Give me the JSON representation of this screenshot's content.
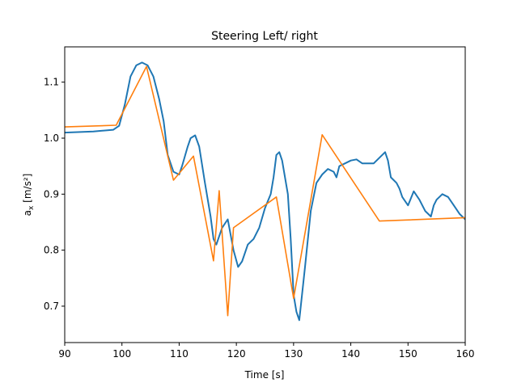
{
  "chart_data": {
    "type": "line",
    "title": "Steering Left/ right",
    "xlabel": "Time [s]",
    "ylabel_main": "a",
    "ylabel_sub": "x",
    "ylabel_unit": " [m/s²]",
    "xlim": [
      90,
      160
    ],
    "ylim": [
      0.635,
      1.163
    ],
    "xticks": [
      90,
      100,
      110,
      120,
      130,
      140,
      150,
      160
    ],
    "yticks": [
      0.7,
      0.8,
      0.9,
      1.0,
      1.1
    ],
    "ytick_labels": [
      "0.7",
      "0.8",
      "0.9",
      "1.0",
      "1.1"
    ],
    "grid": false,
    "series": [
      {
        "color": "#1f77b4",
        "x": [
          90,
          95,
          98.5,
          99.5,
          100.5,
          101.5,
          102.5,
          103.5,
          104.5,
          105.5,
          106.5,
          107.3,
          108,
          109,
          110,
          110.5,
          111.5,
          112,
          112.8,
          113.5,
          114.5,
          115.5,
          116,
          116.5,
          117.5,
          118.5,
          119.5,
          120.3,
          121,
          122,
          123,
          124,
          125,
          126,
          126.5,
          127,
          127.5,
          128,
          129,
          129.5,
          130,
          130.5,
          131,
          132,
          133,
          134,
          135,
          136,
          137,
          137.5,
          138,
          139,
          140,
          141,
          142,
          143,
          144,
          145,
          146,
          146.5,
          147,
          148,
          148.5,
          149,
          150,
          151,
          152,
          153,
          154,
          154.5,
          155,
          156,
          157,
          158,
          159,
          160
        ],
        "y": [
          1.01,
          1.012,
          1.015,
          1.022,
          1.06,
          1.11,
          1.13,
          1.135,
          1.13,
          1.11,
          1.07,
          1.03,
          0.97,
          0.94,
          0.935,
          0.95,
          0.985,
          1.0,
          1.005,
          0.985,
          0.92,
          0.86,
          0.82,
          0.81,
          0.84,
          0.855,
          0.8,
          0.77,
          0.78,
          0.81,
          0.82,
          0.84,
          0.875,
          0.9,
          0.93,
          0.97,
          0.975,
          0.96,
          0.9,
          0.82,
          0.72,
          0.69,
          0.675,
          0.77,
          0.87,
          0.92,
          0.935,
          0.945,
          0.94,
          0.93,
          0.95,
          0.955,
          0.96,
          0.962,
          0.955,
          0.955,
          0.955,
          0.965,
          0.975,
          0.96,
          0.93,
          0.92,
          0.91,
          0.895,
          0.88,
          0.905,
          0.89,
          0.87,
          0.86,
          0.88,
          0.89,
          0.9,
          0.895,
          0.88,
          0.865,
          0.855
        ]
      },
      {
        "color": "#ff7f0e",
        "x": [
          90,
          99,
          104.3,
          109,
          112.5,
          116,
          117,
          118.5,
          119.5,
          127,
          130,
          135,
          145,
          160
        ],
        "y": [
          1.02,
          1.023,
          1.128,
          0.925,
          0.968,
          0.781,
          0.906,
          0.683,
          0.84,
          0.895,
          0.714,
          1.006,
          0.852,
          0.858
        ]
      }
    ]
  }
}
